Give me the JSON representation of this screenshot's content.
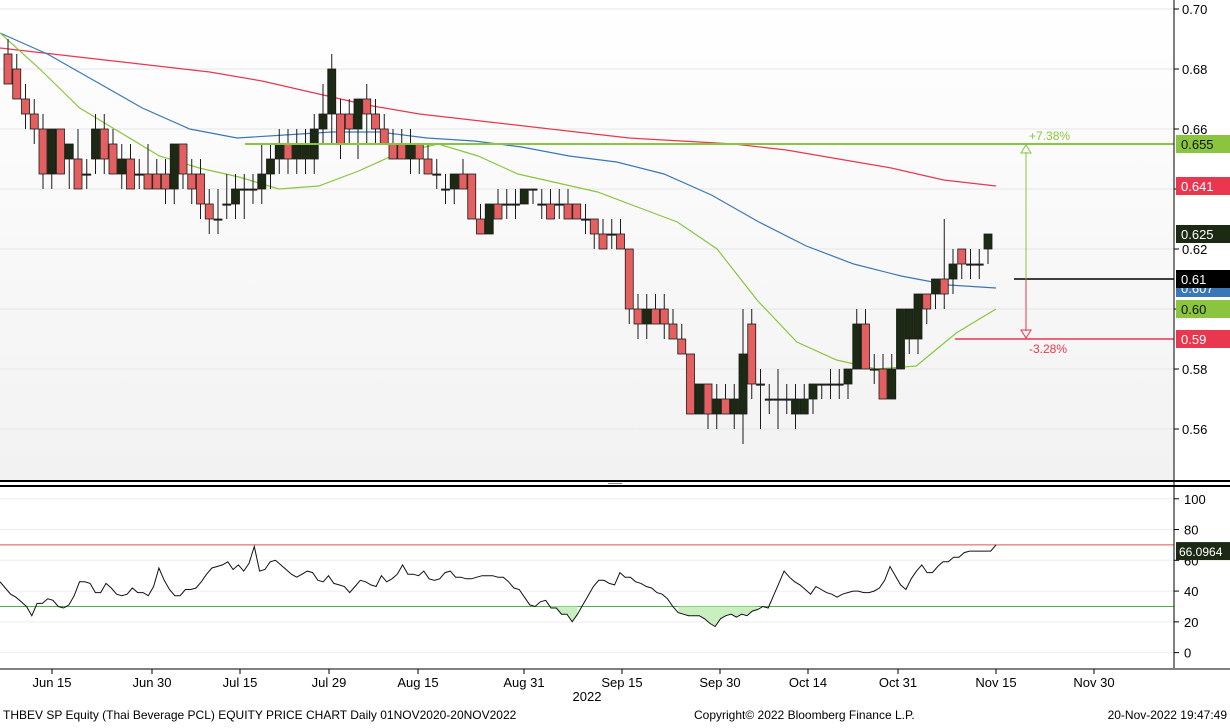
{
  "chart_data": [
    {
      "type": "candlestick",
      "panel": "price",
      "y_ticks": [
        "0.70",
        "0.68",
        "0.66",
        "0.64",
        "0.62",
        "0.60",
        "0.58",
        "0.56"
      ],
      "ylim": [
        0.543,
        0.703
      ],
      "x_ticks": [
        "Jun 15",
        "Jun 30",
        "Jul 15",
        "Jul 29",
        "Aug 15",
        "Aug 31",
        "Sep 15",
        "Sep 30",
        "Oct 14",
        "Oct 31",
        "Nov 15",
        "Nov 30"
      ],
      "year_label": "2022",
      "candles": [
        {
          "o": 0.685,
          "h": 0.69,
          "l": 0.675,
          "c": 0.675
        },
        {
          "o": 0.68,
          "h": 0.685,
          "l": 0.67,
          "c": 0.67
        },
        {
          "o": 0.67,
          "h": 0.675,
          "l": 0.66,
          "c": 0.665
        },
        {
          "o": 0.665,
          "h": 0.67,
          "l": 0.655,
          "c": 0.66
        },
        {
          "o": 0.66,
          "h": 0.665,
          "l": 0.64,
          "c": 0.645
        },
        {
          "o": 0.645,
          "h": 0.66,
          "l": 0.64,
          "c": 0.66
        },
        {
          "o": 0.66,
          "h": 0.66,
          "l": 0.645,
          "c": 0.645
        },
        {
          "o": 0.65,
          "h": 0.655,
          "l": 0.64,
          "c": 0.655
        },
        {
          "o": 0.65,
          "h": 0.66,
          "l": 0.64,
          "c": 0.64
        },
        {
          "o": 0.645,
          "h": 0.65,
          "l": 0.64,
          "c": 0.645
        },
        {
          "o": 0.65,
          "h": 0.665,
          "l": 0.645,
          "c": 0.66
        },
        {
          "o": 0.66,
          "h": 0.665,
          "l": 0.645,
          "c": 0.65
        },
        {
          "o": 0.655,
          "h": 0.66,
          "l": 0.645,
          "c": 0.645
        },
        {
          "o": 0.645,
          "h": 0.655,
          "l": 0.64,
          "c": 0.65
        },
        {
          "o": 0.65,
          "h": 0.655,
          "l": 0.64,
          "c": 0.64
        },
        {
          "o": 0.645,
          "h": 0.65,
          "l": 0.64,
          "c": 0.645
        },
        {
          "o": 0.645,
          "h": 0.655,
          "l": 0.64,
          "c": 0.64
        },
        {
          "o": 0.645,
          "h": 0.65,
          "l": 0.64,
          "c": 0.64
        },
        {
          "o": 0.645,
          "h": 0.65,
          "l": 0.635,
          "c": 0.64
        },
        {
          "o": 0.64,
          "h": 0.655,
          "l": 0.635,
          "c": 0.655
        },
        {
          "o": 0.655,
          "h": 0.655,
          "l": 0.64,
          "c": 0.645
        },
        {
          "o": 0.645,
          "h": 0.65,
          "l": 0.635,
          "c": 0.64
        },
        {
          "o": 0.645,
          "h": 0.65,
          "l": 0.63,
          "c": 0.635
        },
        {
          "o": 0.635,
          "h": 0.64,
          "l": 0.625,
          "c": 0.63
        },
        {
          "o": 0.63,
          "h": 0.64,
          "l": 0.625,
          "c": 0.63
        },
        {
          "o": 0.635,
          "h": 0.645,
          "l": 0.63,
          "c": 0.635
        },
        {
          "o": 0.635,
          "h": 0.645,
          "l": 0.63,
          "c": 0.64
        },
        {
          "o": 0.64,
          "h": 0.645,
          "l": 0.63,
          "c": 0.64
        },
        {
          "o": 0.64,
          "h": 0.645,
          "l": 0.635,
          "c": 0.64
        },
        {
          "o": 0.64,
          "h": 0.655,
          "l": 0.635,
          "c": 0.645
        },
        {
          "o": 0.645,
          "h": 0.655,
          "l": 0.64,
          "c": 0.65
        },
        {
          "o": 0.65,
          "h": 0.66,
          "l": 0.645,
          "c": 0.655
        },
        {
          "o": 0.655,
          "h": 0.66,
          "l": 0.645,
          "c": 0.65
        },
        {
          "o": 0.65,
          "h": 0.66,
          "l": 0.645,
          "c": 0.655
        },
        {
          "o": 0.65,
          "h": 0.66,
          "l": 0.645,
          "c": 0.655
        },
        {
          "o": 0.65,
          "h": 0.665,
          "l": 0.645,
          "c": 0.66
        },
        {
          "o": 0.66,
          "h": 0.675,
          "l": 0.655,
          "c": 0.665
        },
        {
          "o": 0.665,
          "h": 0.685,
          "l": 0.655,
          "c": 0.68
        },
        {
          "o": 0.665,
          "h": 0.67,
          "l": 0.65,
          "c": 0.655
        },
        {
          "o": 0.665,
          "h": 0.67,
          "l": 0.655,
          "c": 0.66
        },
        {
          "o": 0.66,
          "h": 0.67,
          "l": 0.65,
          "c": 0.67
        },
        {
          "o": 0.67,
          "h": 0.675,
          "l": 0.655,
          "c": 0.665
        },
        {
          "o": 0.665,
          "h": 0.67,
          "l": 0.655,
          "c": 0.66
        },
        {
          "o": 0.66,
          "h": 0.665,
          "l": 0.655,
          "c": 0.655
        },
        {
          "o": 0.655,
          "h": 0.66,
          "l": 0.65,
          "c": 0.65
        },
        {
          "o": 0.655,
          "h": 0.66,
          "l": 0.65,
          "c": 0.65
        },
        {
          "o": 0.65,
          "h": 0.66,
          "l": 0.645,
          "c": 0.655
        },
        {
          "o": 0.655,
          "h": 0.655,
          "l": 0.645,
          "c": 0.65
        },
        {
          "o": 0.65,
          "h": 0.655,
          "l": 0.645,
          "c": 0.645
        },
        {
          "o": 0.645,
          "h": 0.65,
          "l": 0.64,
          "c": 0.645
        },
        {
          "o": 0.64,
          "h": 0.645,
          "l": 0.635,
          "c": 0.64
        },
        {
          "o": 0.64,
          "h": 0.645,
          "l": 0.635,
          "c": 0.645
        },
        {
          "o": 0.645,
          "h": 0.65,
          "l": 0.64,
          "c": 0.64
        },
        {
          "o": 0.645,
          "h": 0.645,
          "l": 0.63,
          "c": 0.63
        },
        {
          "o": 0.63,
          "h": 0.635,
          "l": 0.625,
          "c": 0.625
        },
        {
          "o": 0.625,
          "h": 0.635,
          "l": 0.625,
          "c": 0.635
        },
        {
          "o": 0.635,
          "h": 0.64,
          "l": 0.63,
          "c": 0.63
        },
        {
          "o": 0.635,
          "h": 0.64,
          "l": 0.63,
          "c": 0.635
        },
        {
          "o": 0.635,
          "h": 0.64,
          "l": 0.63,
          "c": 0.635
        },
        {
          "o": 0.635,
          "h": 0.64,
          "l": 0.635,
          "c": 0.64
        },
        {
          "o": 0.64,
          "h": 0.64,
          "l": 0.635,
          "c": 0.64
        },
        {
          "o": 0.635,
          "h": 0.64,
          "l": 0.63,
          "c": 0.635
        },
        {
          "o": 0.635,
          "h": 0.64,
          "l": 0.63,
          "c": 0.63
        },
        {
          "o": 0.635,
          "h": 0.64,
          "l": 0.63,
          "c": 0.635
        },
        {
          "o": 0.635,
          "h": 0.64,
          "l": 0.63,
          "c": 0.63
        },
        {
          "o": 0.635,
          "h": 0.635,
          "l": 0.63,
          "c": 0.63
        },
        {
          "o": 0.63,
          "h": 0.635,
          "l": 0.625,
          "c": 0.63
        },
        {
          "o": 0.63,
          "h": 0.63,
          "l": 0.62,
          "c": 0.625
        },
        {
          "o": 0.625,
          "h": 0.63,
          "l": 0.62,
          "c": 0.62
        },
        {
          "o": 0.625,
          "h": 0.63,
          "l": 0.62,
          "c": 0.625
        },
        {
          "o": 0.625,
          "h": 0.63,
          "l": 0.62,
          "c": 0.62
        },
        {
          "o": 0.62,
          "h": 0.62,
          "l": 0.595,
          "c": 0.6
        },
        {
          "o": 0.6,
          "h": 0.605,
          "l": 0.59,
          "c": 0.595
        },
        {
          "o": 0.595,
          "h": 0.605,
          "l": 0.59,
          "c": 0.6
        },
        {
          "o": 0.6,
          "h": 0.605,
          "l": 0.595,
          "c": 0.595
        },
        {
          "o": 0.6,
          "h": 0.605,
          "l": 0.59,
          "c": 0.595
        },
        {
          "o": 0.595,
          "h": 0.6,
          "l": 0.59,
          "c": 0.59
        },
        {
          "o": 0.59,
          "h": 0.595,
          "l": 0.585,
          "c": 0.585
        },
        {
          "o": 0.585,
          "h": 0.585,
          "l": 0.565,
          "c": 0.565
        },
        {
          "o": 0.565,
          "h": 0.575,
          "l": 0.565,
          "c": 0.575
        },
        {
          "o": 0.575,
          "h": 0.575,
          "l": 0.56,
          "c": 0.565
        },
        {
          "o": 0.565,
          "h": 0.575,
          "l": 0.56,
          "c": 0.57
        },
        {
          "o": 0.57,
          "h": 0.575,
          "l": 0.565,
          "c": 0.565
        },
        {
          "o": 0.565,
          "h": 0.575,
          "l": 0.56,
          "c": 0.57
        },
        {
          "o": 0.565,
          "h": 0.6,
          "l": 0.555,
          "c": 0.585
        },
        {
          "o": 0.595,
          "h": 0.6,
          "l": 0.57,
          "c": 0.575
        },
        {
          "o": 0.575,
          "h": 0.58,
          "l": 0.56,
          "c": 0.575
        },
        {
          "o": 0.57,
          "h": 0.575,
          "l": 0.565,
          "c": 0.57
        },
        {
          "o": 0.57,
          "h": 0.58,
          "l": 0.56,
          "c": 0.57
        },
        {
          "o": 0.57,
          "h": 0.575,
          "l": 0.565,
          "c": 0.57
        },
        {
          "o": 0.565,
          "h": 0.575,
          "l": 0.56,
          "c": 0.57
        },
        {
          "o": 0.565,
          "h": 0.575,
          "l": 0.565,
          "c": 0.57
        },
        {
          "o": 0.57,
          "h": 0.575,
          "l": 0.565,
          "c": 0.575
        },
        {
          "o": 0.575,
          "h": 0.575,
          "l": 0.57,
          "c": 0.575
        },
        {
          "o": 0.575,
          "h": 0.58,
          "l": 0.57,
          "c": 0.575
        },
        {
          "o": 0.575,
          "h": 0.58,
          "l": 0.57,
          "c": 0.575
        },
        {
          "o": 0.575,
          "h": 0.58,
          "l": 0.57,
          "c": 0.58
        },
        {
          "o": 0.58,
          "h": 0.6,
          "l": 0.58,
          "c": 0.595
        },
        {
          "o": 0.595,
          "h": 0.6,
          "l": 0.58,
          "c": 0.58
        },
        {
          "o": 0.58,
          "h": 0.585,
          "l": 0.575,
          "c": 0.58
        },
        {
          "o": 0.58,
          "h": 0.585,
          "l": 0.57,
          "c": 0.57
        },
        {
          "o": 0.57,
          "h": 0.585,
          "l": 0.57,
          "c": 0.58
        },
        {
          "o": 0.58,
          "h": 0.6,
          "l": 0.58,
          "c": 0.6
        },
        {
          "o": 0.59,
          "h": 0.6,
          "l": 0.585,
          "c": 0.6
        },
        {
          "o": 0.59,
          "h": 0.605,
          "l": 0.585,
          "c": 0.605
        },
        {
          "o": 0.605,
          "h": 0.605,
          "l": 0.595,
          "c": 0.6
        },
        {
          "o": 0.605,
          "h": 0.61,
          "l": 0.6,
          "c": 0.61
        },
        {
          "o": 0.61,
          "h": 0.63,
          "l": 0.6,
          "c": 0.605
        },
        {
          "o": 0.61,
          "h": 0.62,
          "l": 0.605,
          "c": 0.615
        },
        {
          "o": 0.62,
          "h": 0.62,
          "l": 0.61,
          "c": 0.615
        },
        {
          "o": 0.615,
          "h": 0.62,
          "l": 0.61,
          "c": 0.615
        },
        {
          "o": 0.615,
          "h": 0.62,
          "l": 0.61,
          "c": 0.615
        },
        {
          "o": 0.62,
          "h": 0.625,
          "l": 0.615,
          "c": 0.625
        }
      ],
      "moving_averages": [
        {
          "color": "#e8374f",
          "values": [
            0.687,
            0.685,
            0.683,
            0.681,
            0.679,
            0.676,
            0.672,
            0.668,
            0.665,
            0.663,
            0.661,
            0.659,
            0.657,
            0.656,
            0.655,
            0.653,
            0.65,
            0.647,
            0.643,
            0.641
          ]
        },
        {
          "color": "#3a77b8",
          "values": [
            0.692,
            0.685,
            0.676,
            0.667,
            0.66,
            0.657,
            0.658,
            0.659,
            0.659,
            0.657,
            0.656,
            0.654,
            0.651,
            0.649,
            0.645,
            0.638,
            0.629,
            0.621,
            0.615,
            0.611,
            0.608,
            0.607
          ]
        },
        {
          "color": "#8bc53f",
          "values": [
            0.692,
            0.68,
            0.667,
            0.659,
            0.651,
            0.647,
            0.644,
            0.64,
            0.641,
            0.646,
            0.652,
            0.655,
            0.651,
            0.645,
            0.642,
            0.639,
            0.634,
            0.629,
            0.62,
            0.603,
            0.589,
            0.583,
            0.58,
            0.581,
            0.592,
            0.6
          ]
        }
      ],
      "levels": [
        {
          "value": 0.655,
          "label": "0.655",
          "color": "#8bc53f"
        },
        {
          "value": 0.61,
          "label": "0.61",
          "color": "#000000"
        },
        {
          "value": 0.59,
          "label": "0.59",
          "color": "#e8374f"
        }
      ],
      "price_labels": [
        {
          "label": "0.641",
          "color": "#e8374f"
        },
        {
          "label": "0.625",
          "color": "#1c2a14"
        },
        {
          "label": "0.607",
          "color": "#3a77b8"
        },
        {
          "label": "0.60",
          "color": "#8bc53f"
        }
      ],
      "annotations": [
        {
          "label": "+7.38%",
          "color": "#8bc53f"
        },
        {
          "label": "-3.28%",
          "color": "#e8374f"
        }
      ]
    },
    {
      "type": "line",
      "panel": "rsi",
      "y_ticks": [
        "100",
        "80",
        "60",
        "40",
        "20",
        "0"
      ],
      "ylim": [
        -10,
        107
      ],
      "upper_level": 70,
      "lower_level": 30,
      "last_value_label": "66.0964",
      "values": [
        46,
        42,
        38,
        36,
        33,
        30,
        24,
        32,
        32,
        35,
        34,
        30,
        29,
        31,
        37,
        46,
        46,
        45,
        39,
        39,
        45,
        42,
        38,
        37,
        38,
        42,
        39,
        39,
        37,
        43,
        55,
        47,
        41,
        37,
        37,
        41,
        41,
        42,
        46,
        51,
        55,
        56,
        57,
        59,
        54,
        57,
        53,
        58,
        69,
        53,
        54,
        59,
        60,
        57,
        54,
        51,
        49,
        51,
        53,
        52,
        47,
        46,
        50,
        45,
        44,
        43,
        39,
        43,
        47,
        46,
        44,
        43,
        50,
        46,
        48,
        51,
        57,
        51,
        51,
        50,
        53,
        48,
        47,
        48,
        52,
        53,
        49,
        49,
        48,
        48,
        49,
        50,
        50,
        50,
        49,
        49,
        46,
        42,
        41,
        36,
        31,
        30,
        33,
        34,
        29,
        29,
        25,
        25,
        20,
        25,
        31,
        37,
        43,
        47,
        47,
        45,
        44,
        52,
        49,
        49,
        46,
        45,
        43,
        42,
        39,
        38,
        35,
        30,
        26,
        25,
        24,
        24,
        24,
        22,
        19,
        17,
        22,
        24,
        25,
        23,
        25,
        24,
        27,
        28,
        30,
        29,
        37,
        45,
        53,
        49,
        46,
        44,
        41,
        38,
        43,
        41,
        39,
        38,
        36,
        38,
        39,
        40,
        40,
        39,
        39,
        40,
        42,
        47,
        56,
        50,
        44,
        41,
        48,
        53,
        57,
        52,
        52,
        56,
        59,
        59,
        62,
        62,
        65,
        66,
        66,
        66,
        66,
        66,
        70
      ]
    }
  ],
  "footer": {
    "left": "THBEV SP Equity (Thai Beverage PCL) EQUITY PRICE CHART  Daily 01NOV2020-20NOV2022",
    "center": "Copyright© 2022 Bloomberg Finance L.P.",
    "right": "20-Nov-2022 19:47:49"
  }
}
